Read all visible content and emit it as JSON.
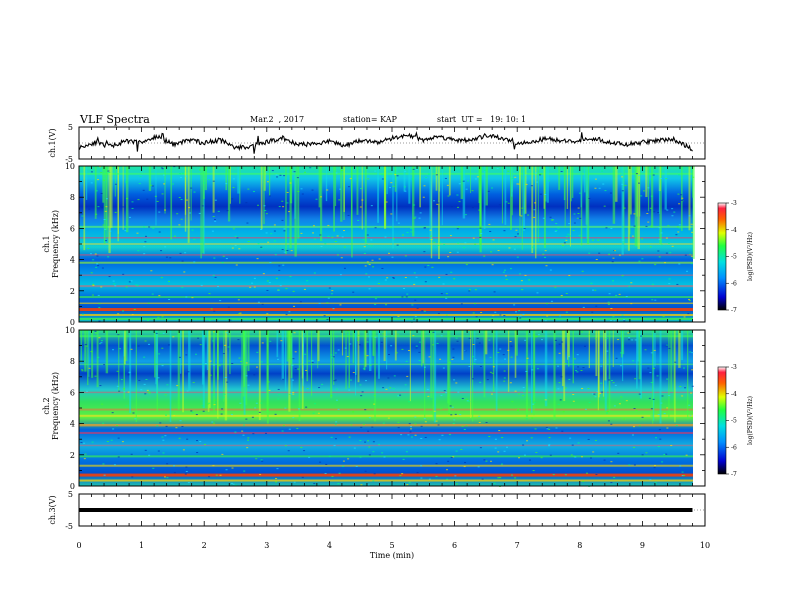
{
  "header": {
    "title": "VLF Spectra",
    "date": "Mar.2  , 2017",
    "station": "station= KAP",
    "start_ut": "start  UT =   19: 10: 1"
  },
  "chart_data": [
    {
      "type": "line",
      "panel": "waveform-ch1",
      "ylabel": "ch.1(V)",
      "xlim": [
        0,
        10
      ],
      "ylim": [
        -5,
        5
      ],
      "yticks": [
        "5",
        "-5"
      ],
      "x": [
        0,
        0.25,
        0.5,
        0.75,
        1.0,
        1.25,
        1.5,
        1.75,
        2.0,
        2.25,
        2.5,
        2.75,
        3.0,
        3.25,
        3.5,
        3.75,
        4.0,
        4.25,
        4.5,
        4.75,
        5.0,
        5.25,
        5.5,
        5.75,
        6.0,
        6.25,
        6.5,
        6.75,
        7.0,
        7.25,
        7.5,
        7.75,
        8.0,
        8.25,
        8.5,
        8.75,
        9.0,
        9.25,
        9.5,
        9.8
      ],
      "values": [
        -1.5,
        0.2,
        -1.0,
        0.5,
        0.3,
        2.0,
        -0.5,
        1.0,
        0.0,
        1.0,
        -1.5,
        -1.0,
        0.3,
        1.5,
        -0.5,
        -0.3,
        0.5,
        -0.8,
        1.0,
        0.0,
        1.5,
        2.5,
        1.0,
        2.0,
        1.0,
        0.8,
        2.3,
        1.5,
        0.0,
        0.5,
        1.5,
        0.5,
        0.8,
        1.5,
        0.0,
        -0.5,
        0.2,
        0.8,
        1.2,
        -2.0
      ]
    },
    {
      "type": "heatmap",
      "panel": "spectrogram-ch1",
      "ylabel": "ch.1",
      "ylabel2": "Frequency  (kHz)",
      "xlim": [
        0,
        10
      ],
      "ylim": [
        0,
        10
      ],
      "yticks": [
        "0",
        "2",
        "4",
        "6",
        "8",
        "10"
      ],
      "colorbar": {
        "label": "log(PSD)(V²/Hz)",
        "range": [
          -7,
          -3
        ],
        "ticks": [
          "-3",
          "-4",
          "-5",
          "-6",
          "-7"
        ]
      }
    },
    {
      "type": "heatmap",
      "panel": "spectrogram-ch2",
      "ylabel": "ch.2",
      "ylabel2": "Frequency  (kHz)",
      "xlim": [
        0,
        10
      ],
      "ylim": [
        0,
        10
      ],
      "yticks": [
        "0",
        "2",
        "4",
        "6",
        "8",
        "10"
      ],
      "colorbar": {
        "label": "log(PSD)(V²/Hz)",
        "range": [
          -7,
          -3
        ],
        "ticks": [
          "-3",
          "-4",
          "-5",
          "-6",
          "-7"
        ]
      }
    },
    {
      "type": "line",
      "panel": "waveform-ch3",
      "ylabel": "ch.3(V)",
      "xlim": [
        0,
        10
      ],
      "ylim": [
        -5,
        5
      ],
      "yticks": [
        "5",
        "-5"
      ],
      "x": [
        0,
        9.8
      ],
      "values": [
        0,
        0
      ]
    }
  ],
  "xaxis": {
    "label": "Time  (min)",
    "ticks": [
      "0",
      "1",
      "2",
      "3",
      "4",
      "5",
      "6",
      "7",
      "8",
      "9",
      "10"
    ]
  }
}
